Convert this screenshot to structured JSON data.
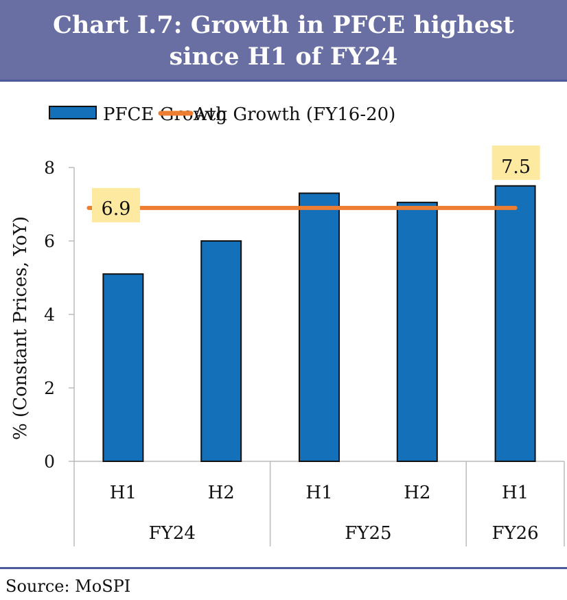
{
  "chart_data": {
    "type": "bar",
    "title": "Chart I.7: Growth in PFCE highest since H1 of FY24",
    "ylabel": "% (Constant Prices, YoY)",
    "ylim": [
      0,
      8
    ],
    "yticks": [
      0,
      2,
      4,
      6,
      8
    ],
    "categories": [
      "H1",
      "H2",
      "H1",
      "H2",
      "H1"
    ],
    "groups": [
      {
        "label": "FY24",
        "count": 2
      },
      {
        "label": "FY25",
        "count": 2
      },
      {
        "label": "FY26",
        "count": 1
      }
    ],
    "series": [
      {
        "name": "PFCE Growth",
        "type": "bar",
        "color": "#1470b8",
        "values": [
          5.1,
          6.0,
          7.3,
          7.05,
          7.5
        ]
      },
      {
        "name": "Avg Growth (FY16-20)",
        "type": "line",
        "color": "#ed7d31",
        "values": [
          6.9,
          6.9,
          6.9,
          6.9,
          6.9
        ]
      }
    ],
    "annotations": [
      {
        "text": "6.9",
        "series": "Avg Growth (FY16-20)"
      },
      {
        "text": "7.5",
        "series": "PFCE Growth",
        "index": 4
      }
    ],
    "annotation_bg": "#fde9a0",
    "legend": "top",
    "grid": false
  },
  "header": {
    "title_line1": "Chart I.7: Growth in PFCE highest",
    "title_line2": "since H1 of FY24"
  },
  "source": "Source: MoSPI"
}
